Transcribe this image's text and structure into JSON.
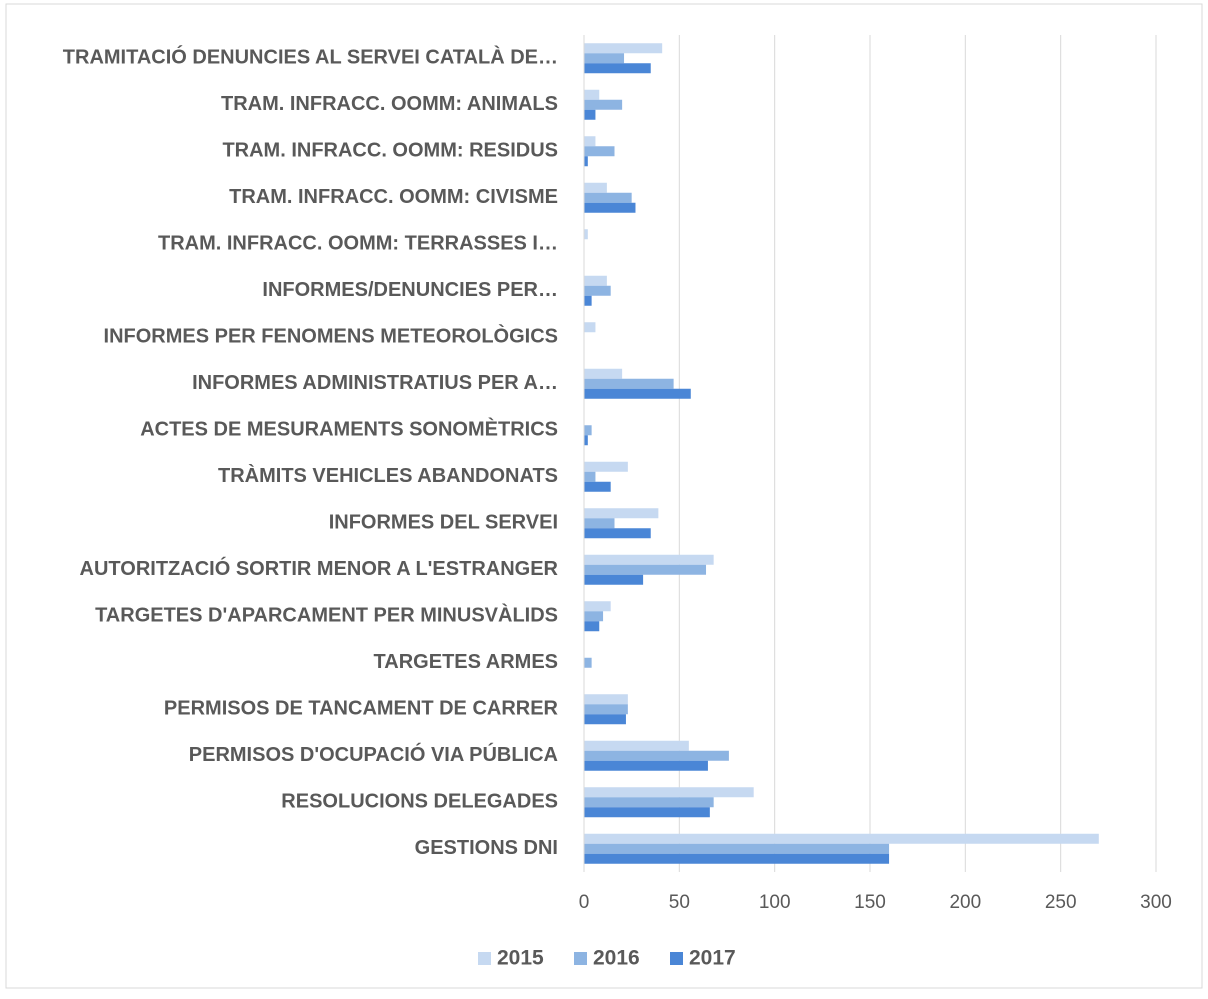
{
  "chart_data": {
    "type": "hbar",
    "categories": [
      "TRAMITACIÓ DENUNCIES AL SERVEI CATALÀ DE…",
      "TRAM. INFRACC. OOMM:  ANIMALS",
      "TRAM. INFRACC. OOMM:  RESIDUS",
      "TRAM. INFRACC. OOMM:  CIVISME",
      "TRAM. INFRACC. OOMM:  TERRASSES I…",
      "INFORMES/DENUNCIES PER…",
      "INFORMES PER FENOMENS METEOROLÒGICS",
      "INFORMES ADMINISTRATIUS PER A…",
      "ACTES DE MESURAMENTS SONOMÈTRICS",
      "TRÀMITS VEHICLES ABANDONATS",
      "INFORMES DEL SERVEI",
      "AUTORITZACIÓ SORTIR MENOR A L'ESTRANGER",
      "TARGETES D'APARCAMENT PER MINUSVÀLIDS",
      "TARGETES ARMES",
      "PERMISOS DE TANCAMENT DE CARRER",
      "PERMISOS D'OCUPACIÓ VIA PÚBLICA",
      "RESOLUCIONS DELEGADES",
      "GESTIONS DNI"
    ],
    "series": [
      {
        "name": "2015",
        "color": "#c6d9f1",
        "values": [
          41,
          8,
          6,
          12,
          2,
          12,
          6,
          20,
          0,
          23,
          39,
          68,
          14,
          0,
          23,
          55,
          89,
          270
        ]
      },
      {
        "name": "2016",
        "color": "#8db4e2",
        "values": [
          21,
          20,
          16,
          25,
          0,
          14,
          0,
          47,
          4,
          6,
          16,
          64,
          10,
          4,
          23,
          76,
          68,
          160
        ]
      },
      {
        "name": "2017",
        "color": "#4a86d6",
        "values": [
          35,
          6,
          2,
          27,
          0,
          4,
          0,
          56,
          2,
          14,
          35,
          31,
          8,
          0,
          22,
          65,
          66,
          160
        ]
      }
    ],
    "xlim": [
      0,
      300
    ],
    "xticks": [
      0,
      50,
      100,
      150,
      200,
      250,
      300
    ],
    "grid": true,
    "legend": "bottom"
  }
}
